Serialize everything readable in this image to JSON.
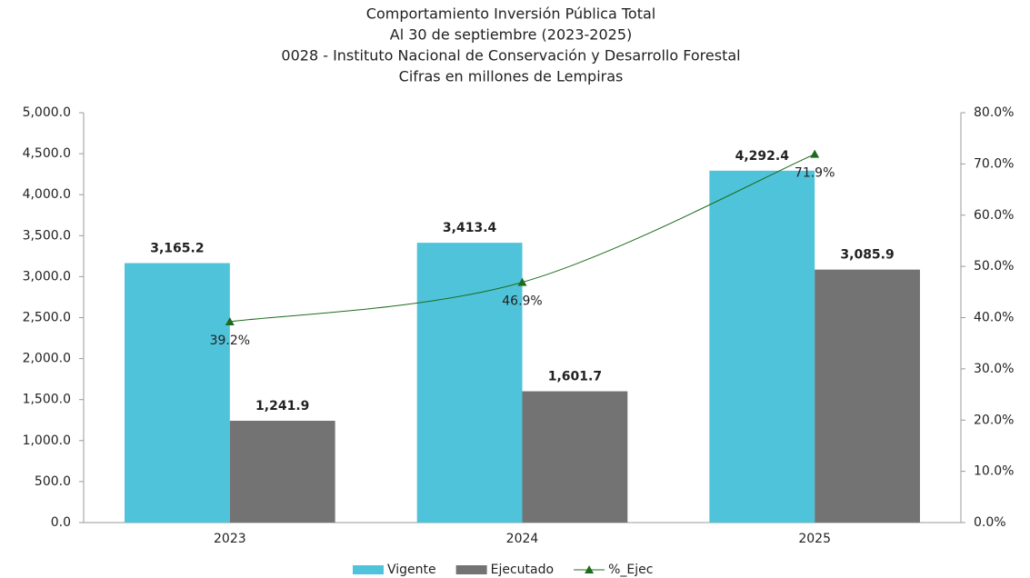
{
  "chart_data": {
    "type": "bar",
    "title": "Comportamiento Inversión Pública Total",
    "subtitle": [
      "Al 30 de septiembre (2023-2025)",
      "0028 - Instituto Nacional de Conservación y Desarrollo Forestal",
      "Cifras en millones de Lempiras"
    ],
    "categories": [
      "2023",
      "2024",
      "2025"
    ],
    "series": [
      {
        "name": "Vigente",
        "color": "#4fc3d9",
        "values": [
          3165.2,
          3413.4,
          4292.4
        ],
        "value_labels": [
          "3,165.2",
          "3,413.4",
          "4,292.4"
        ]
      },
      {
        "name": "Ejecutado",
        "color": "#737373",
        "values": [
          1241.9,
          1601.7,
          3085.9
        ],
        "value_labels": [
          "1,241.9",
          "1,601.7",
          "3,085.9"
        ]
      },
      {
        "name": "%_Ejec",
        "type": "line",
        "axis": "y2",
        "color": "#1e6b1e",
        "values": [
          39.2,
          46.9,
          71.9
        ],
        "value_labels": [
          "39.2%",
          "46.9%",
          "71.9%"
        ]
      }
    ],
    "ylim": [
      0,
      5000
    ],
    "yticks": [
      {
        "value": 0,
        "label": "0.0"
      },
      {
        "value": 500,
        "label": "500.0"
      },
      {
        "value": 1000,
        "label": "1,000.0"
      },
      {
        "value": 1500,
        "label": "1,500.0"
      },
      {
        "value": 2000,
        "label": "2,000.0"
      },
      {
        "value": 2500,
        "label": "2,500.0"
      },
      {
        "value": 3000,
        "label": "3,000.0"
      },
      {
        "value": 3500,
        "label": "3,500.0"
      },
      {
        "value": 4000,
        "label": "4,000.0"
      },
      {
        "value": 4500,
        "label": "4,500.0"
      },
      {
        "value": 5000,
        "label": "5,000.0"
      }
    ],
    "y2lim": [
      0,
      80
    ],
    "y2ticks": [
      {
        "value": 0,
        "label": "0.0%"
      },
      {
        "value": 10,
        "label": "10.0%"
      },
      {
        "value": 20,
        "label": "20.0%"
      },
      {
        "value": 30,
        "label": "30.0%"
      },
      {
        "value": 40,
        "label": "40.0%"
      },
      {
        "value": 50,
        "label": "50.0%"
      },
      {
        "value": 60,
        "label": "60.0%"
      },
      {
        "value": 70,
        "label": "70.0%"
      },
      {
        "value": 80,
        "label": "80.0%"
      }
    ],
    "legend": "bottom"
  }
}
